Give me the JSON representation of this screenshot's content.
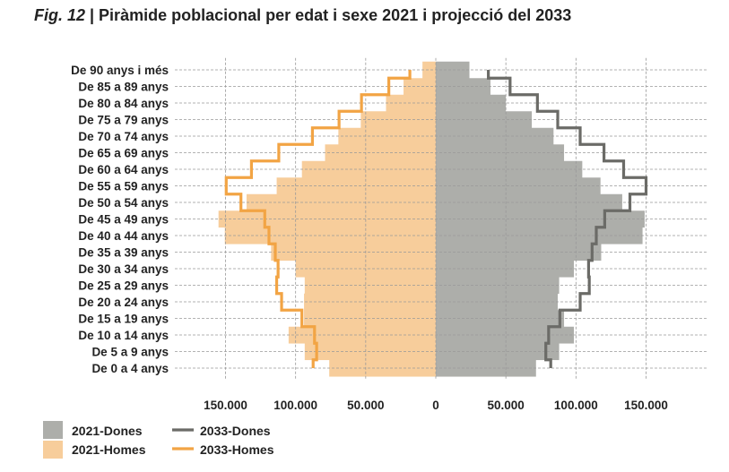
{
  "title": {
    "fig": "Fig. 12",
    "text": " | Piràmide poblacional per edat i sexe 2021 i projecció del 2033"
  },
  "colors": {
    "dones2021": "#adaeaa",
    "homes2021": "#f7cd9b",
    "dones2033": "#6b6b67",
    "homes2033": "#f2a444"
  },
  "chart_data": {
    "type": "bar",
    "orientation": "horizontal-population-pyramid",
    "title": "Piràmide poblacional per edat i sexe 2021 i projecció del 2033",
    "categories": [
      "De 90 anys i més",
      "De 85 a 89 anys",
      "De 80 a 84 anys",
      "De 75 a 79 anys",
      "De 70 a 74 anys",
      "De 65 a 69 anys",
      "De 60 a 64 anys",
      "De 55 a 59 anys",
      "De 50 a 54 anys",
      "De 45 a 49 anys",
      "De 40 a 44 anys",
      "De 35 a 39 anys",
      "De 30 a 34 anys",
      "De 25 a 29 anys",
      "De 20 a 24 anys",
      "De 15 a 19 anys",
      "De 10 a 14 anys",
      "De 5 a 9 anys",
      "De 0 a 4 anys"
    ],
    "series": [
      {
        "name": "2021-Dones",
        "kind": "bar",
        "side": "right",
        "values": [
          24000,
          39000,
          50000,
          68500,
          84000,
          91500,
          104500,
          117500,
          133000,
          149000,
          147500,
          118000,
          98500,
          88000,
          87000,
          91500,
          98500,
          88000,
          71500
        ]
      },
      {
        "name": "2021-Homes",
        "kind": "bar",
        "side": "left",
        "values": [
          9500,
          23000,
          35500,
          53500,
          69500,
          79000,
          95500,
          113500,
          135000,
          155000,
          150500,
          117500,
          100000,
          93500,
          94000,
          94000,
          105000,
          93500,
          76000
        ]
      },
      {
        "name": "2033-Dones",
        "kind": "step-line",
        "side": "right",
        "values": [
          37500,
          53000,
          72500,
          87000,
          103000,
          120000,
          134000,
          150000,
          138500,
          120500,
          114500,
          111500,
          109000,
          109500,
          103000,
          88500,
          80500,
          78500,
          82000
        ]
      },
      {
        "name": "2033-Homes",
        "kind": "step-line",
        "side": "left",
        "values": [
          18500,
          33500,
          53000,
          69000,
          88000,
          112000,
          131500,
          149500,
          139000,
          122000,
          119000,
          114500,
          112500,
          113500,
          110000,
          95500,
          86500,
          85000,
          87500
        ]
      }
    ],
    "xlim": [
      -170000,
      170000
    ],
    "xticks": [
      -150000,
      -100000,
      -50000,
      0,
      50000,
      100000,
      150000
    ],
    "xtick_labels": [
      "150.000",
      "100.000",
      "50.000",
      "0",
      "50.000",
      "100.000",
      "150.000"
    ],
    "xlabel": "",
    "ylabel": "",
    "grid": true,
    "legend": {
      "placement": "bottom-left",
      "entries": [
        "2021-Dones",
        "2021-Homes",
        "2033-Dones",
        "2033-Homes"
      ]
    }
  }
}
